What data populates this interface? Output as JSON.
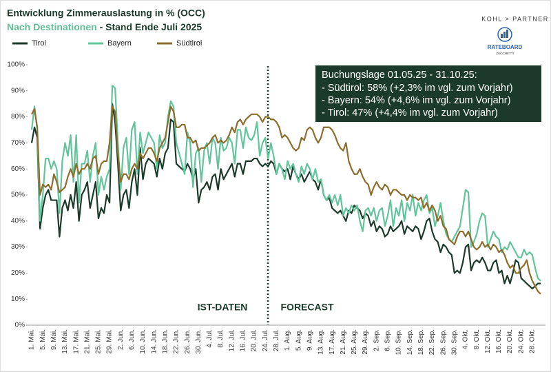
{
  "chart_data": {
    "type": "line",
    "title": "Entwicklung Zimmerauslastung in % (OCC)",
    "subtitle_highlight": "Nach Destinationen",
    "subtitle": " - Stand Ende Juli 2025",
    "logo": {
      "brand": "KOHL > PARTNER",
      "name": "RATEBOARD",
      "sub": "ZUCCHETTI"
    },
    "legend": "top-left",
    "annotations": [
      "IST-DATEN",
      "FORECAST"
    ],
    "info_box": {
      "title": "Buchungslage 01.05.25 - 31.10.25:",
      "lines": [
        "- Südtirol:  58% (+2,3% im vgl. zum Vorjahr)",
        "- Bayern:  54% (+4,6% im vgl. zum Vorjahr)",
        "- Tirol:  47% (+4,4% im vgl. zum Vorjahr)"
      ]
    },
    "ylim": [
      0,
      100
    ],
    "yticks": [
      {
        "value": 0,
        "label": "0%"
      },
      {
        "value": 10,
        "label": "10%"
      },
      {
        "value": 20,
        "label": "20%"
      },
      {
        "value": 30,
        "label": "30%"
      },
      {
        "value": 40,
        "label": "40%"
      },
      {
        "value": 50,
        "label": "50%"
      },
      {
        "value": 60,
        "label": "60%"
      },
      {
        "value": 70,
        "label": "70%"
      },
      {
        "value": 80,
        "label": "80%"
      },
      {
        "value": 90,
        "label": "90%"
      },
      {
        "value": 100,
        "label": "100%"
      }
    ],
    "categories": [
      "1. Mai.",
      null,
      null,
      null,
      "5. Mai.",
      null,
      null,
      null,
      "9. Mai.",
      null,
      null,
      null,
      "13. Mai.",
      null,
      null,
      null,
      "17. Mai.",
      null,
      null,
      null,
      "21. Mai.",
      null,
      null,
      null,
      "25. Mai.",
      null,
      null,
      null,
      "29. Mai.",
      null,
      null,
      null,
      "2. Jun.",
      null,
      null,
      null,
      "6. Jun.",
      null,
      null,
      null,
      "10. Jun.",
      null,
      null,
      null,
      "14. Jun.",
      null,
      null,
      null,
      "18. Jun.",
      null,
      null,
      null,
      "22. Jun.",
      null,
      null,
      null,
      "26. Jun.",
      null,
      null,
      null,
      "30. Jun.",
      null,
      null,
      null,
      "4. Jul.",
      null,
      null,
      null,
      "8. Jul.",
      null,
      null,
      null,
      "12. Jul.",
      null,
      null,
      null,
      "16. Jul.",
      null,
      null,
      null,
      "20. Jul.",
      null,
      null,
      null,
      "24. Jul.",
      null,
      null,
      null,
      "28. Jul.",
      null,
      null,
      null,
      "1. Aug.",
      null,
      null,
      null,
      "5. Aug.",
      null,
      null,
      null,
      "9. Aug.",
      null,
      null,
      null,
      "13. Aug.",
      null,
      null,
      null,
      "17. Aug.",
      null,
      null,
      null,
      "21. Aug.",
      null,
      null,
      null,
      "25. Aug.",
      null,
      null,
      null,
      "29. Aug.",
      null,
      null,
      null,
      "2. Sep.",
      null,
      null,
      null,
      "6. Sep.",
      null,
      null,
      null,
      "10. Sep.",
      null,
      null,
      null,
      "14. Sep.",
      null,
      null,
      null,
      "18. Sep.",
      null,
      null,
      null,
      "22. Sep.",
      null,
      null,
      null,
      "26. Sep.",
      null,
      null,
      null,
      "30. Sep.",
      null,
      null,
      null,
      "4. Okt.",
      null,
      null,
      null,
      "8. Okt.",
      null,
      null,
      null,
      "12. Okt.",
      null,
      null,
      null,
      "16. Okt.",
      null,
      null,
      null,
      "20. Okt.",
      null,
      null,
      null,
      "24. Okt.",
      null,
      null,
      null,
      "28. Okt.",
      null,
      null,
      null
    ],
    "series": [
      {
        "name": "Tirol",
        "color": "#1b3a2a",
        "values": [
          70,
          76,
          72,
          37,
          45,
          50,
          52,
          48,
          48,
          48,
          34,
          45,
          48,
          44,
          50,
          45,
          55,
          40,
          50,
          52,
          55,
          45,
          50,
          55,
          41,
          45,
          43,
          50,
          47,
          85,
          78,
          62,
          44,
          50,
          52,
          45,
          55,
          60,
          50,
          68,
          56,
          62,
          64,
          63,
          62,
          57,
          64,
          60,
          66,
          68,
          79,
          78,
          62,
          61,
          60,
          59,
          62,
          60,
          56,
          60,
          47,
          52,
          53,
          55,
          52,
          57,
          58,
          52,
          60,
          56,
          58,
          60,
          62,
          57,
          62,
          62,
          58,
          63,
          63,
          63,
          64,
          64,
          62,
          61,
          62,
          61,
          63,
          62,
          58,
          62,
          60,
          59,
          60,
          56,
          61,
          58,
          56,
          58,
          55,
          57,
          59,
          56,
          55,
          52,
          56,
          50,
          48,
          49,
          45,
          44,
          43,
          44,
          42,
          40,
          44,
          43,
          46,
          45,
          44,
          41,
          43,
          42,
          38,
          40,
          36,
          38,
          37,
          34,
          35,
          38,
          36,
          37,
          38,
          40,
          35,
          38,
          37,
          36,
          38,
          37,
          33,
          36,
          40,
          41,
          36,
          33,
          32,
          28,
          31,
          30,
          28,
          27,
          20,
          21,
          20,
          24,
          30,
          31,
          21,
          24,
          25,
          24,
          26,
          24,
          21,
          21,
          24,
          25,
          20,
          21,
          16,
          19,
          16,
          20,
          25,
          24,
          18,
          17,
          16,
          15,
          14,
          15,
          16,
          16
        ]
      },
      {
        "name": "Bayern",
        "color": "#62c49a",
        "values": [
          75,
          84,
          75,
          40,
          50,
          64,
          64,
          60,
          63,
          60,
          43,
          63,
          70,
          65,
          73,
          55,
          73,
          47,
          62,
          62,
          67,
          55,
          65,
          70,
          50,
          57,
          52,
          57,
          60,
          92,
          91,
          70,
          52,
          68,
          72,
          58,
          75,
          78,
          58,
          74,
          66,
          70,
          74,
          72,
          70,
          60,
          73,
          68,
          70,
          80,
          86,
          84,
          70,
          66,
          62,
          58,
          74,
          70,
          53,
          66,
          68,
          55,
          67,
          70,
          62,
          72,
          70,
          60,
          72,
          67,
          68,
          72,
          70,
          62,
          75,
          75,
          68,
          76,
          72,
          71,
          73,
          78,
          65,
          70,
          72,
          64,
          70,
          65,
          58,
          62,
          60,
          56,
          63,
          60,
          62,
          58,
          55,
          61,
          58,
          62,
          60,
          56,
          60,
          55,
          56,
          50,
          48,
          50,
          47,
          50,
          46,
          50,
          42,
          45,
          43,
          46,
          44,
          46,
          40,
          36,
          44,
          45,
          42,
          45,
          40,
          44,
          45,
          38,
          42,
          48,
          38,
          45,
          42,
          48,
          40,
          47,
          44,
          50,
          42,
          47,
          44,
          48,
          50,
          43,
          45,
          38,
          42,
          47,
          40,
          35,
          33,
          32,
          34,
          36,
          38,
          45,
          52,
          51,
          30,
          32,
          35,
          40,
          43,
          42,
          30,
          33,
          36,
          34,
          33,
          28,
          30,
          29,
          32,
          30,
          28,
          26,
          26,
          29,
          27,
          28,
          27,
          22,
          18,
          17
        ]
      },
      {
        "name": "Südtirol",
        "color": "#8b6d2c",
        "values": [
          81,
          83,
          76,
          50,
          54,
          53,
          54,
          52,
          58,
          55,
          51,
          52,
          53,
          57,
          60,
          57,
          62,
          58,
          60,
          60,
          62,
          60,
          64,
          65,
          58,
          62,
          63,
          63,
          70,
          84,
          82,
          66,
          55,
          58,
          58,
          56,
          60,
          62,
          60,
          66,
          64,
          66,
          68,
          68,
          66,
          63,
          68,
          70,
          72,
          78,
          84,
          82,
          76,
          76,
          77,
          77,
          72,
          72,
          70,
          71,
          67,
          68,
          68,
          69,
          70,
          72,
          73,
          70,
          71,
          70,
          71,
          73,
          76,
          74,
          78,
          79,
          77,
          79,
          80,
          81,
          81,
          81,
          80,
          78,
          80,
          80,
          79,
          79,
          78,
          76,
          72,
          73,
          72,
          70,
          68,
          67,
          68,
          72,
          71,
          75,
          76,
          75,
          72,
          70,
          72,
          76,
          76,
          76,
          75,
          73,
          70,
          68,
          67,
          70,
          63,
          60,
          58,
          58,
          60,
          57,
          55,
          54,
          50,
          53,
          55,
          53,
          52,
          54,
          53,
          50,
          52,
          52,
          51,
          50,
          50,
          48,
          50,
          49,
          49,
          48,
          49,
          45,
          47,
          44,
          46,
          44,
          40,
          42,
          38,
          37,
          33,
          32,
          31,
          34,
          36,
          36,
          34,
          36,
          33,
          30,
          29,
          30,
          32,
          30,
          31,
          29,
          31,
          30,
          28,
          29,
          27,
          24,
          22,
          23,
          20,
          20,
          22,
          23,
          25,
          20,
          17,
          15,
          13,
          12
        ]
      }
    ]
  }
}
